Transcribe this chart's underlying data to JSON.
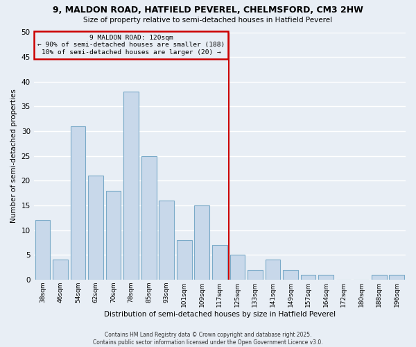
{
  "title1": "9, MALDON ROAD, HATFIELD PEVEREL, CHELMSFORD, CM3 2HW",
  "title2": "Size of property relative to semi-detached houses in Hatfield Peverel",
  "xlabel": "Distribution of semi-detached houses by size in Hatfield Peverel",
  "ylabel": "Number of semi-detached properties",
  "categories": [
    "38sqm",
    "46sqm",
    "54sqm",
    "62sqm",
    "70sqm",
    "78sqm",
    "85sqm",
    "93sqm",
    "101sqm",
    "109sqm",
    "117sqm",
    "125sqm",
    "133sqm",
    "141sqm",
    "149sqm",
    "157sqm",
    "164sqm",
    "172sqm",
    "180sqm",
    "188sqm",
    "196sqm"
  ],
  "values": [
    12,
    4,
    31,
    21,
    18,
    38,
    25,
    16,
    8,
    15,
    7,
    5,
    2,
    4,
    2,
    1,
    1,
    0,
    0,
    1,
    1
  ],
  "bar_color": "#c8d8ea",
  "bar_edge_color": "#7aaac8",
  "vline_x": 10.5,
  "vline_color": "#cc0000",
  "annotation_title": "9 MALDON ROAD: 120sqm",
  "annotation_line1": "← 90% of semi-detached houses are smaller (188)",
  "annotation_line2": "10% of semi-detached houses are larger (20) →",
  "annotation_box_color": "#cc0000",
  "ylim": [
    0,
    50
  ],
  "yticks": [
    0,
    5,
    10,
    15,
    20,
    25,
    30,
    35,
    40,
    45,
    50
  ],
  "bg_color": "#e8eef5",
  "grid_color": "#ffffff",
  "footer_line1": "Contains HM Land Registry data © Crown copyright and database right 2025.",
  "footer_line2": "Contains public sector information licensed under the Open Government Licence v3.0."
}
